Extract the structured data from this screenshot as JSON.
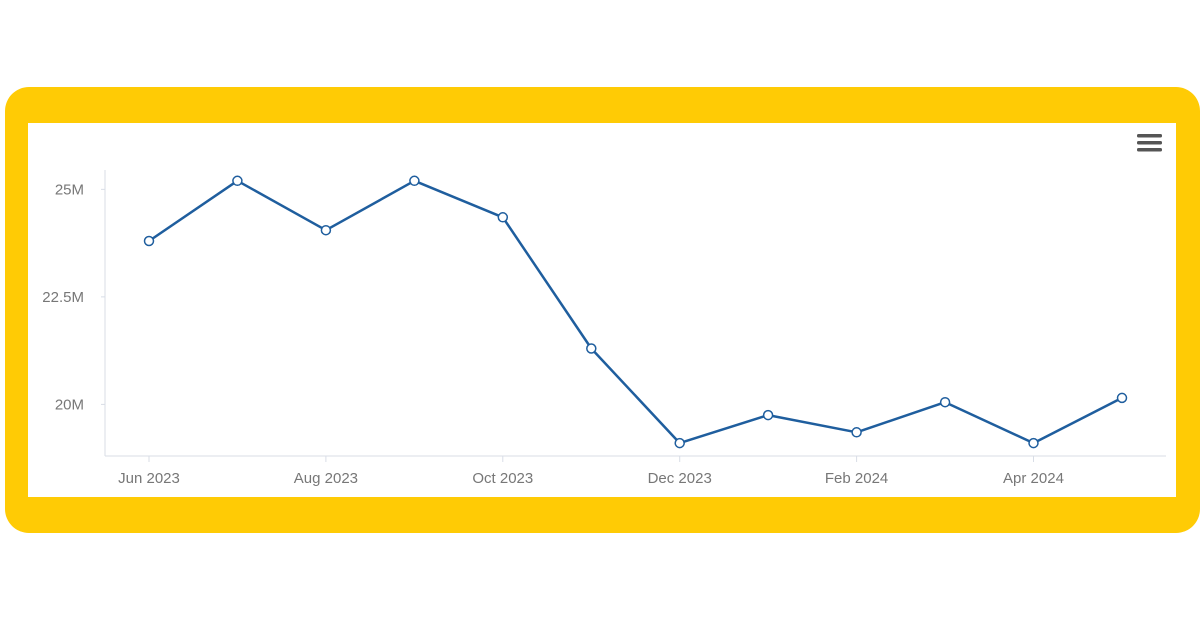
{
  "colors": {
    "frame": "#FFCB05",
    "line": "#1f5e9e",
    "marker_fill": "#ffffff",
    "axis": "#d8dde6",
    "tick_text": "#777777",
    "menu_icon": "#555555"
  },
  "menu": {
    "icon": "hamburger-menu-icon"
  },
  "chart_data": {
    "type": "line",
    "x": [
      "2023-06",
      "2023-07",
      "2023-08",
      "2023-09",
      "2023-10",
      "2023-11",
      "2023-12",
      "2024-01",
      "2024-02",
      "2024-03",
      "2024-04",
      "2024-05"
    ],
    "series": [
      {
        "values": [
          23.8,
          25.2,
          24.05,
          25.2,
          24.35,
          21.3,
          19.1,
          19.75,
          19.35,
          20.05,
          19.1,
          20.15
        ]
      }
    ],
    "xticks": [
      {
        "x": "2023-06",
        "label": "Jun 2023"
      },
      {
        "x": "2023-08",
        "label": "Aug 2023"
      },
      {
        "x": "2023-10",
        "label": "Oct 2023"
      },
      {
        "x": "2023-12",
        "label": "Dec 2023"
      },
      {
        "x": "2024-02",
        "label": "Feb 2024"
      },
      {
        "x": "2024-04",
        "label": "Apr 2024"
      }
    ],
    "yticks": [
      {
        "value": 20,
        "label": "20M"
      },
      {
        "value": 22.5,
        "label": "22.5M"
      },
      {
        "value": 25,
        "label": "25M"
      }
    ],
    "ylim": [
      18.8,
      25.45
    ],
    "y_unit": "M",
    "grid": false,
    "title": "",
    "xlabel": "",
    "ylabel": ""
  }
}
